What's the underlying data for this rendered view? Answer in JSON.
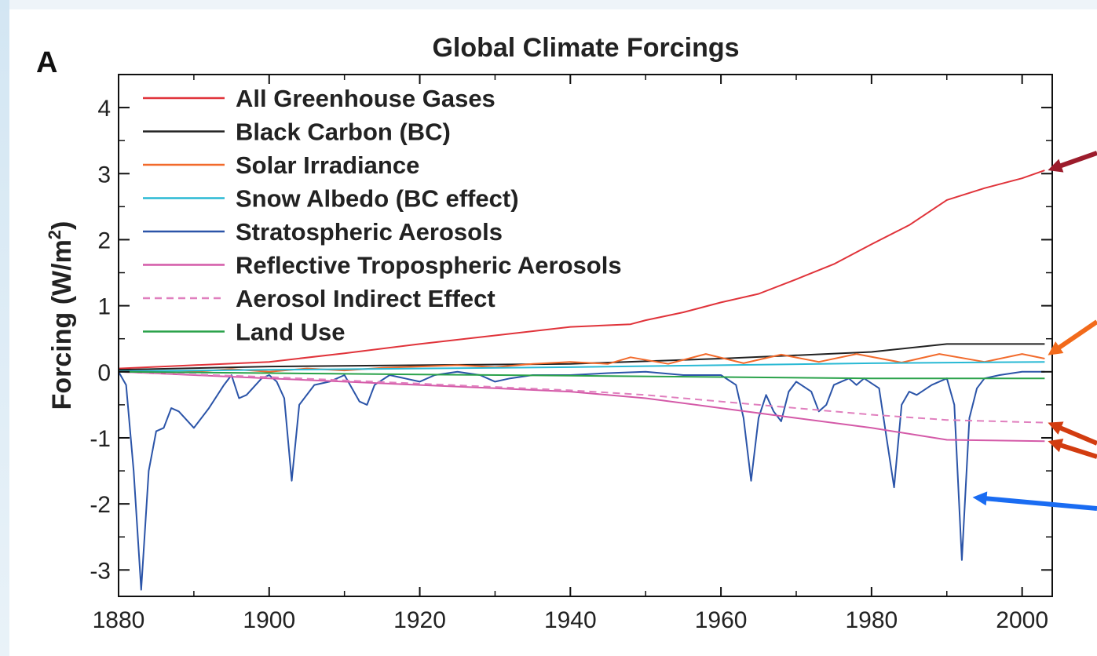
{
  "chart_data": {
    "type": "line",
    "panel_letter": "A",
    "title": "Global Climate Forcings",
    "ylabel_main": "Forcing (W/m",
    "ylabel_sup": "2",
    "ylabel_end": ")",
    "xlabel": "",
    "xlim": [
      1880,
      2004
    ],
    "ylim": [
      -3.4,
      4.5
    ],
    "x_ticks": [
      1880,
      1900,
      1920,
      1940,
      1960,
      1980,
      2000
    ],
    "x_tick_labels": [
      "1880",
      "1900",
      "1920",
      "1940",
      "1960",
      "1980",
      "2000"
    ],
    "y_ticks": [
      -3,
      -2,
      -1,
      0,
      1,
      2,
      3,
      4
    ],
    "y_tick_labels": [
      "-3",
      "-2",
      "-1",
      "0",
      "1",
      "2",
      "3",
      "4"
    ],
    "grid": false,
    "legend_position": "top-left",
    "series": [
      {
        "name": "All Greenhouse Gases",
        "color": "#e0333a",
        "dash": false,
        "points": [
          [
            1880,
            0.05
          ],
          [
            1890,
            0.1
          ],
          [
            1900,
            0.15
          ],
          [
            1910,
            0.28
          ],
          [
            1920,
            0.42
          ],
          [
            1930,
            0.55
          ],
          [
            1940,
            0.68
          ],
          [
            1948,
            0.72
          ],
          [
            1950,
            0.78
          ],
          [
            1955,
            0.9
          ],
          [
            1960,
            1.05
          ],
          [
            1965,
            1.18
          ],
          [
            1970,
            1.4
          ],
          [
            1975,
            1.63
          ],
          [
            1980,
            1.93
          ],
          [
            1985,
            2.22
          ],
          [
            1990,
            2.6
          ],
          [
            1995,
            2.78
          ],
          [
            2000,
            2.93
          ],
          [
            2003,
            3.05
          ]
        ]
      },
      {
        "name": "Black Carbon (BC)",
        "color": "#222222",
        "dash": false,
        "points": [
          [
            1880,
            0.03
          ],
          [
            1900,
            0.08
          ],
          [
            1920,
            0.1
          ],
          [
            1940,
            0.12
          ],
          [
            1960,
            0.2
          ],
          [
            1970,
            0.25
          ],
          [
            1980,
            0.3
          ],
          [
            1990,
            0.42
          ],
          [
            2003,
            0.42
          ]
        ]
      },
      {
        "name": "Solar Irradiance",
        "color": "#f26a2b",
        "dash": false,
        "points": [
          [
            1880,
            0.0
          ],
          [
            1885,
            -0.02
          ],
          [
            1890,
            0.0
          ],
          [
            1895,
            0.04
          ],
          [
            1900,
            0.0
          ],
          [
            1905,
            0.05
          ],
          [
            1910,
            0.02
          ],
          [
            1915,
            0.06
          ],
          [
            1920,
            0.08
          ],
          [
            1925,
            0.1
          ],
          [
            1930,
            0.07
          ],
          [
            1935,
            0.12
          ],
          [
            1940,
            0.15
          ],
          [
            1945,
            0.12
          ],
          [
            1948,
            0.22
          ],
          [
            1953,
            0.12
          ],
          [
            1958,
            0.27
          ],
          [
            1963,
            0.13
          ],
          [
            1968,
            0.26
          ],
          [
            1973,
            0.15
          ],
          [
            1978,
            0.27
          ],
          [
            1984,
            0.14
          ],
          [
            1989,
            0.27
          ],
          [
            1995,
            0.15
          ],
          [
            2000,
            0.27
          ],
          [
            2003,
            0.2
          ]
        ]
      },
      {
        "name": "Snow Albedo (BC effect)",
        "color": "#29b9d4",
        "dash": false,
        "points": [
          [
            1880,
            0.01
          ],
          [
            1900,
            0.03
          ],
          [
            1920,
            0.05
          ],
          [
            1940,
            0.07
          ],
          [
            1960,
            0.1
          ],
          [
            1980,
            0.13
          ],
          [
            2003,
            0.15
          ]
        ]
      },
      {
        "name": "Stratospheric Aerosols",
        "color": "#2b54a8",
        "dash": false,
        "points": [
          [
            1880,
            0.0
          ],
          [
            1881,
            -0.2
          ],
          [
            1882,
            -1.5
          ],
          [
            1883,
            -3.3
          ],
          [
            1884,
            -1.5
          ],
          [
            1885,
            -0.9
          ],
          [
            1886,
            -0.85
          ],
          [
            1887,
            -0.55
          ],
          [
            1888,
            -0.6
          ],
          [
            1890,
            -0.85
          ],
          [
            1892,
            -0.55
          ],
          [
            1894,
            -0.2
          ],
          [
            1895,
            -0.05
          ],
          [
            1896,
            -0.4
          ],
          [
            1897,
            -0.35
          ],
          [
            1899,
            -0.1
          ],
          [
            1900,
            -0.05
          ],
          [
            1901,
            -0.15
          ],
          [
            1902,
            -0.4
          ],
          [
            1903,
            -1.65
          ],
          [
            1904,
            -0.5
          ],
          [
            1906,
            -0.2
          ],
          [
            1908,
            -0.15
          ],
          [
            1910,
            -0.05
          ],
          [
            1912,
            -0.45
          ],
          [
            1913,
            -0.5
          ],
          [
            1914,
            -0.2
          ],
          [
            1916,
            -0.05
          ],
          [
            1918,
            -0.1
          ],
          [
            1920,
            -0.15
          ],
          [
            1922,
            -0.05
          ],
          [
            1925,
            0.0
          ],
          [
            1928,
            -0.05
          ],
          [
            1930,
            -0.15
          ],
          [
            1932,
            -0.1
          ],
          [
            1935,
            -0.05
          ],
          [
            1940,
            -0.05
          ],
          [
            1945,
            -0.02
          ],
          [
            1950,
            0.0
          ],
          [
            1955,
            -0.05
          ],
          [
            1960,
            -0.05
          ],
          [
            1962,
            -0.2
          ],
          [
            1963,
            -0.7
          ],
          [
            1964,
            -1.65
          ],
          [
            1965,
            -0.7
          ],
          [
            1966,
            -0.35
          ],
          [
            1967,
            -0.6
          ],
          [
            1968,
            -0.75
          ],
          [
            1969,
            -0.3
          ],
          [
            1970,
            -0.15
          ],
          [
            1972,
            -0.3
          ],
          [
            1973,
            -0.6
          ],
          [
            1974,
            -0.5
          ],
          [
            1975,
            -0.2
          ],
          [
            1977,
            -0.1
          ],
          [
            1978,
            -0.2
          ],
          [
            1979,
            -0.1
          ],
          [
            1981,
            -0.25
          ],
          [
            1982,
            -1.0
          ],
          [
            1983,
            -1.75
          ],
          [
            1984,
            -0.5
          ],
          [
            1985,
            -0.3
          ],
          [
            1986,
            -0.35
          ],
          [
            1988,
            -0.2
          ],
          [
            1990,
            -0.1
          ],
          [
            1991,
            -0.5
          ],
          [
            1992,
            -2.85
          ],
          [
            1993,
            -0.7
          ],
          [
            1994,
            -0.25
          ],
          [
            1995,
            -0.1
          ],
          [
            1997,
            -0.05
          ],
          [
            2000,
            0.0
          ],
          [
            2003,
            0.0
          ]
        ]
      },
      {
        "name": "Reflective Tropospheric Aerosols",
        "color": "#d45aa8",
        "dash": false,
        "points": [
          [
            1880,
            0.0
          ],
          [
            1890,
            -0.05
          ],
          [
            1900,
            -0.1
          ],
          [
            1910,
            -0.15
          ],
          [
            1920,
            -0.2
          ],
          [
            1930,
            -0.25
          ],
          [
            1940,
            -0.3
          ],
          [
            1950,
            -0.4
          ],
          [
            1960,
            -0.55
          ],
          [
            1970,
            -0.7
          ],
          [
            1980,
            -0.85
          ],
          [
            1990,
            -1.03
          ],
          [
            2003,
            -1.05
          ]
        ]
      },
      {
        "name": "Aerosol Indirect Effect",
        "color": "#e07fbe",
        "dash": true,
        "points": [
          [
            1880,
            0.0
          ],
          [
            1900,
            -0.08
          ],
          [
            1920,
            -0.18
          ],
          [
            1940,
            -0.28
          ],
          [
            1950,
            -0.35
          ],
          [
            1960,
            -0.45
          ],
          [
            1970,
            -0.55
          ],
          [
            1980,
            -0.65
          ],
          [
            1990,
            -0.73
          ],
          [
            2003,
            -0.77
          ]
        ]
      },
      {
        "name": "Land Use",
        "color": "#2aa24a",
        "dash": false,
        "points": [
          [
            1880,
            0.0
          ],
          [
            1900,
            -0.02
          ],
          [
            1920,
            -0.04
          ],
          [
            1940,
            -0.06
          ],
          [
            1960,
            -0.08
          ],
          [
            1980,
            -0.1
          ],
          [
            2003,
            -0.1
          ]
        ]
      }
    ],
    "annotations": [
      {
        "type": "arrow",
        "color": "#9c1c2c",
        "target": [
          2003,
          3.05
        ]
      },
      {
        "type": "arrow",
        "color": "#f26a1b",
        "target": [
          2003,
          0.25
        ]
      },
      {
        "type": "arrow",
        "color": "#d23c10",
        "target": [
          2003,
          -0.77
        ]
      },
      {
        "type": "arrow",
        "color": "#d23c10",
        "target": [
          2003,
          -1.05
        ]
      },
      {
        "type": "arrow",
        "color": "#1a6cf2",
        "target": [
          1993,
          -1.9
        ]
      }
    ]
  }
}
